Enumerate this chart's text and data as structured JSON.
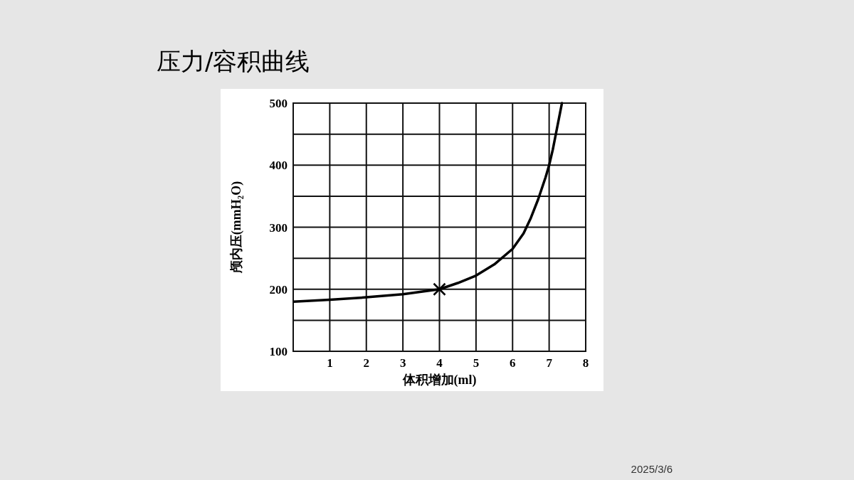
{
  "chart_data": {
    "type": "line",
    "title": "压力/容积曲线",
    "xlabel": "体积增加(ml)",
    "ylabel": "颅内压(mmH₂O)",
    "xlim": [
      0,
      8
    ],
    "xticks": [
      1,
      2,
      3,
      4,
      5,
      6,
      7,
      8
    ],
    "ylim": [
      100,
      500
    ],
    "yticks": [
      100,
      {
        "value": 150,
        "label": null
      },
      200,
      {
        "value": 250,
        "label": null
      },
      300,
      {
        "value": 350,
        "label": null
      },
      400,
      {
        "value": 450,
        "label": null
      },
      500
    ],
    "grid": true,
    "series": [
      {
        "color": "#000000",
        "marker": "none",
        "line_style": "solid",
        "x": [
          0,
          1,
          2,
          3,
          4,
          4.5,
          5,
          5.5,
          6,
          6.3,
          6.5,
          6.7,
          6.9,
          7.0,
          7.1,
          7.2,
          7.3,
          7.35
        ],
        "values": [
          180,
          183,
          187,
          192,
          200,
          210,
          222,
          240,
          265,
          290,
          315,
          345,
          380,
          400,
          425,
          455,
          485,
          500
        ]
      },
      {
        "type": "scatter",
        "color": "#000000",
        "marker": "cross",
        "x": [
          4
        ],
        "values": [
          200
        ]
      }
    ],
    "annotations": [
      "2025/3/6"
    ]
  }
}
